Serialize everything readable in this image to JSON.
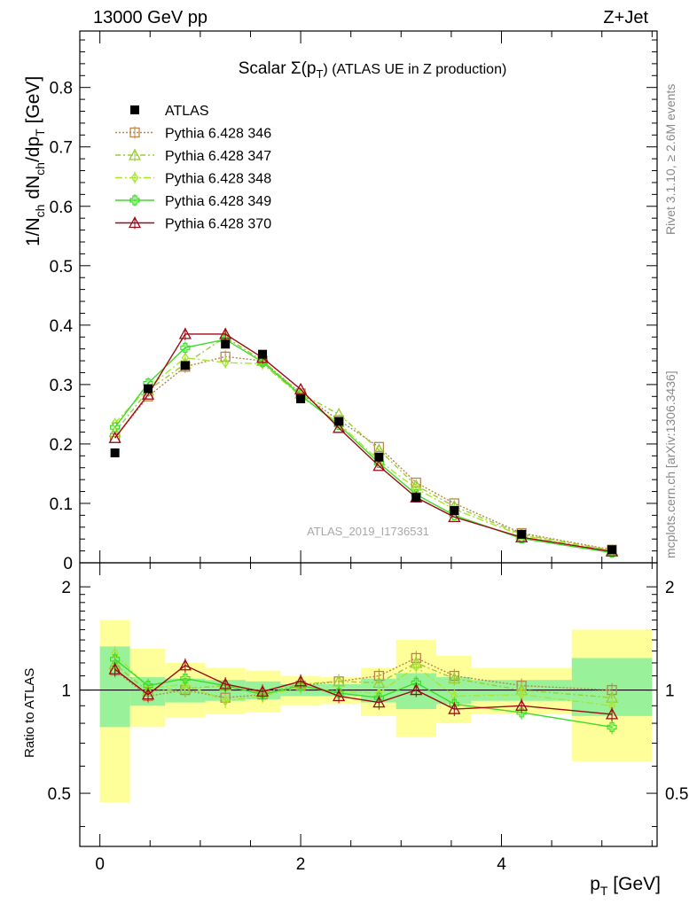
{
  "header": {
    "left": "13000 GeV pp",
    "right": "Z+Jet"
  },
  "side_labels": {
    "rivet": "Rivet 3.1.10, ≥ 2.6M events",
    "mcplots": "mcplots.cern.ch [arXiv:1306.3436]"
  },
  "colors": {
    "data": "#000000",
    "p346": "#b8864b",
    "p347": "#9acd32",
    "p348": "#a8e62e",
    "p349": "#3cdc28",
    "p370": "#9b0a14",
    "band_inner": "#99f299",
    "band_outer": "#ffff99"
  },
  "chart_data": [
    {
      "type": "line",
      "panel": "main",
      "title": "Scalar Σ(p_T) (ATLAS UE in Z production)",
      "title_main": "Scalar Σ(p",
      "title_sub": "T",
      "title_rest": ") (ATLAS UE in Z production)",
      "ylabel": "1/N_ch dN_ch/dp_T [GeV]",
      "xlabel": "p_T [GeV]",
      "watermark": "ATLAS_2019_I1736531",
      "xlim": [
        -0.2,
        5.55
      ],
      "ylim": [
        0,
        0.895
      ],
      "yticks": [
        0,
        0.1,
        0.2,
        0.3,
        0.4,
        0.5,
        0.6,
        0.7,
        0.8
      ],
      "ytick_labels": [
        "0",
        "0.1",
        "0.2",
        "0.3",
        "0.4",
        "0.5",
        "0.6",
        "0.7",
        "0.8"
      ],
      "xticks": [
        0,
        2,
        4
      ],
      "legend_position": "top-left",
      "x": [
        0.15,
        0.48,
        0.85,
        1.25,
        1.62,
        2.0,
        2.38,
        2.78,
        3.15,
        3.53,
        4.2,
        5.1
      ],
      "data": {
        "name": "ATLAS",
        "values": [
          0.185,
          0.293,
          0.332,
          0.368,
          0.351,
          0.276,
          0.238,
          0.178,
          0.11,
          0.088,
          0.048,
          0.022
        ]
      },
      "series": [
        {
          "name": "Pythia 6.428 346",
          "color_key": "p346",
          "dash": "2,2",
          "marker": "square",
          "values": [
            0.21,
            0.28,
            0.33,
            0.347,
            0.34,
            0.285,
            0.24,
            0.195,
            0.135,
            0.1,
            0.05,
            0.022
          ]
        },
        {
          "name": "Pythia 6.428 347",
          "color_key": "p347",
          "dash": "6,3,2,3",
          "marker": "triangle",
          "values": [
            0.22,
            0.29,
            0.335,
            0.38,
            0.34,
            0.285,
            0.25,
            0.19,
            0.13,
            0.095,
            0.048,
            0.021
          ]
        },
        {
          "name": "Pythia 6.428 348",
          "color_key": "p348",
          "dash": "8,3,2,3",
          "marker": "diamond",
          "values": [
            0.235,
            0.295,
            0.345,
            0.337,
            0.335,
            0.28,
            0.235,
            0.172,
            0.125,
            0.09,
            0.046,
            0.02
          ]
        },
        {
          "name": "Pythia 6.428 349",
          "color_key": "p349",
          "dash": "",
          "marker": "cross",
          "values": [
            0.228,
            0.302,
            0.362,
            0.376,
            0.338,
            0.282,
            0.232,
            0.168,
            0.115,
            0.08,
            0.041,
            0.017
          ]
        },
        {
          "name": "Pythia 6.428 370",
          "color_key": "p370",
          "dash": "",
          "marker": "triangle",
          "values": [
            0.21,
            0.283,
            0.385,
            0.385,
            0.345,
            0.292,
            0.227,
            0.163,
            0.11,
            0.077,
            0.043,
            0.019
          ]
        }
      ]
    },
    {
      "type": "line",
      "panel": "ratio",
      "ylabel": "Ratio to ATLAS",
      "xlabel": "p_T [GeV]",
      "xlim": [
        -0.2,
        5.55
      ],
      "ylim": [
        0.35,
        2.35
      ],
      "yticks": [
        0.5,
        1,
        2
      ],
      "ytick_labels": [
        "0.5",
        "1",
        "2"
      ],
      "xticks": [
        0,
        2,
        4
      ],
      "xtick_labels": [
        "0",
        "2",
        "4"
      ],
      "bin_edges": [
        0.0,
        0.3,
        0.65,
        1.05,
        1.45,
        1.8,
        2.2,
        2.6,
        2.95,
        3.35,
        3.7,
        4.7,
        5.5
      ],
      "band_inner": [
        [
          0.78,
          1.34
        ],
        [
          0.9,
          1.09
        ],
        [
          0.92,
          1.08
        ],
        [
          0.93,
          1.07
        ],
        [
          0.94,
          1.06
        ],
        [
          0.96,
          1.04
        ],
        [
          0.96,
          1.04
        ],
        [
          0.92,
          1.08
        ],
        [
          0.88,
          1.12
        ],
        [
          0.91,
          1.09
        ],
        [
          0.93,
          1.07
        ],
        [
          0.84,
          1.24
        ]
      ],
      "band_outer": [
        [
          0.47,
          1.6
        ],
        [
          0.78,
          1.32
        ],
        [
          0.83,
          1.2
        ],
        [
          0.85,
          1.16
        ],
        [
          0.86,
          1.14
        ],
        [
          0.9,
          1.1
        ],
        [
          0.91,
          1.09
        ],
        [
          0.84,
          1.16
        ],
        [
          0.73,
          1.4
        ],
        [
          0.8,
          1.26
        ],
        [
          0.85,
          1.16
        ],
        [
          0.62,
          1.5
        ]
      ],
      "x": [
        0.15,
        0.48,
        0.85,
        1.25,
        1.62,
        2.0,
        2.38,
        2.78,
        3.15,
        3.53,
        4.2,
        5.1
      ],
      "series": [
        {
          "name": "Pythia 6.428 346",
          "color_key": "p346",
          "dash": "2,2",
          "marker": "square",
          "values": [
            1.14,
            0.96,
            1.0,
            0.95,
            0.97,
            1.03,
            1.06,
            1.1,
            1.24,
            1.1,
            1.03,
            1.0
          ]
        },
        {
          "name": "Pythia 6.428 347",
          "color_key": "p347",
          "dash": "6,3,2,3",
          "marker": "triangle",
          "values": [
            1.19,
            0.99,
            1.01,
            1.03,
            0.98,
            1.04,
            1.06,
            1.05,
            1.2,
            1.08,
            1.0,
            0.95
          ]
        },
        {
          "name": "Pythia 6.428 348",
          "color_key": "p348",
          "dash": "8,3,2,3",
          "marker": "diamond",
          "values": [
            1.28,
            1.01,
            1.04,
            0.93,
            0.96,
            1.02,
            0.99,
            0.98,
            1.17,
            0.96,
            0.97,
            0.9
          ]
        },
        {
          "name": "Pythia 6.428 349",
          "color_key": "p349",
          "dash": "",
          "marker": "cross",
          "values": [
            1.23,
            1.03,
            1.08,
            1.03,
            0.97,
            1.03,
            0.98,
            0.95,
            1.05,
            0.91,
            0.86,
            0.78
          ]
        },
        {
          "name": "Pythia 6.428 370",
          "color_key": "p370",
          "dash": "",
          "marker": "triangle",
          "values": [
            1.15,
            0.97,
            1.18,
            1.04,
            0.99,
            1.06,
            0.96,
            0.92,
            1.0,
            0.88,
            0.9,
            0.85
          ]
        }
      ]
    }
  ]
}
